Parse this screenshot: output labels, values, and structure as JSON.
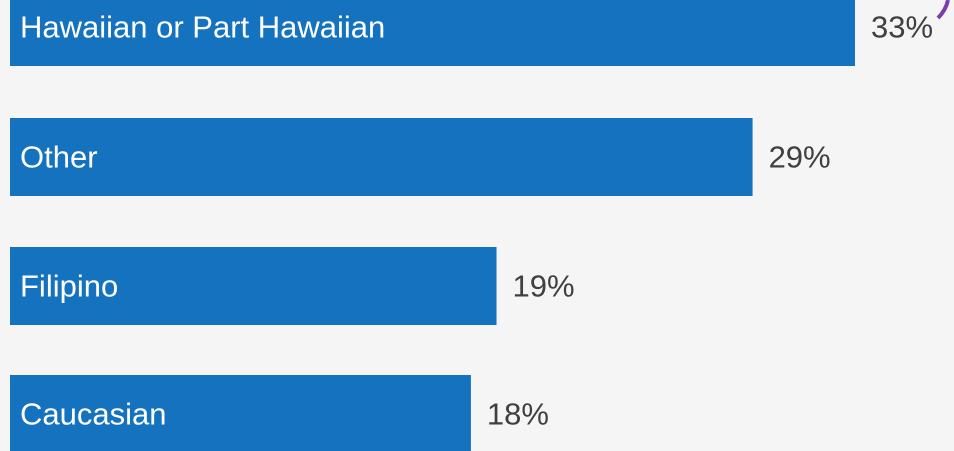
{
  "chart_data": {
    "type": "bar",
    "orientation": "horizontal",
    "categories": [
      "Hawaiian or Part Hawaiian",
      "Other",
      "Filipino",
      "Caucasian"
    ],
    "values": [
      33,
      29,
      19,
      18
    ],
    "value_labels": [
      "33%",
      "29%",
      "19%",
      "18%"
    ],
    "color": "#1472be"
  }
}
